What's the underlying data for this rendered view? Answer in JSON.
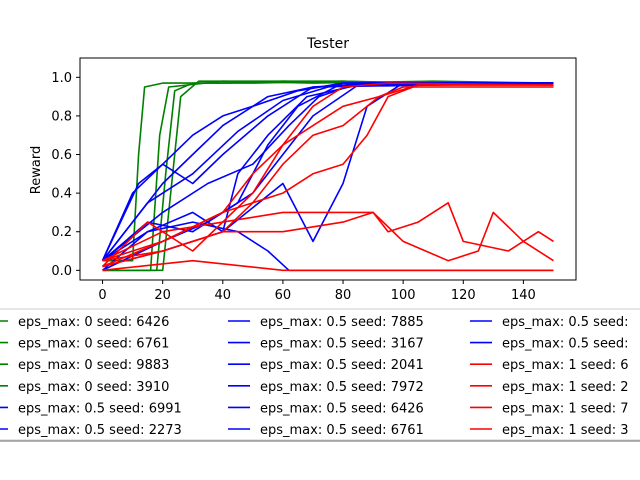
{
  "chart_data": {
    "type": "line",
    "title": "Tester",
    "xlabel": "",
    "ylabel": "Reward",
    "xlim": [
      -7.5,
      157.5
    ],
    "ylim": [
      -0.05,
      1.1
    ],
    "xticks": [
      0,
      20,
      40,
      60,
      80,
      100,
      120,
      140
    ],
    "yticks": [
      0.0,
      0.2,
      0.4,
      0.6,
      0.8,
      1.0
    ],
    "grid": false,
    "legend_position": "below plot, three columns, clipped at right edge",
    "colors": {
      "eps_0": "#008000",
      "eps_0.5": "#0000ff",
      "eps_1": "#ff0000"
    },
    "series": [
      {
        "name": "eps_max: 0 seed: 6426",
        "color": "#008000",
        "points": [
          [
            0,
            0.05
          ],
          [
            10,
            0.05
          ],
          [
            12,
            0.6
          ],
          [
            14,
            0.95
          ],
          [
            20,
            0.97
          ],
          [
            40,
            0.97
          ],
          [
            60,
            0.98
          ],
          [
            80,
            0.98
          ],
          [
            100,
            0.97
          ],
          [
            120,
            0.97
          ],
          [
            150,
            0.97
          ]
        ]
      },
      {
        "name": "eps_max: 0 seed: 6761",
        "color": "#008000",
        "points": [
          [
            0,
            0.0
          ],
          [
            18,
            0.0
          ],
          [
            21,
            0.5
          ],
          [
            24,
            0.93
          ],
          [
            30,
            0.97
          ],
          [
            50,
            0.97
          ],
          [
            80,
            0.98
          ],
          [
            110,
            0.97
          ],
          [
            150,
            0.97
          ]
        ]
      },
      {
        "name": "eps_max: 0 seed: 9883",
        "color": "#008000",
        "points": [
          [
            0,
            0.0
          ],
          [
            20,
            0.0
          ],
          [
            26,
            0.9
          ],
          [
            32,
            0.98
          ],
          [
            60,
            0.98
          ],
          [
            100,
            0.97
          ],
          [
            150,
            0.97
          ]
        ]
      },
      {
        "name": "eps_max: 0 seed: 3910",
        "color": "#008000",
        "points": [
          [
            0,
            0.0
          ],
          [
            16,
            0.0
          ],
          [
            19,
            0.7
          ],
          [
            22,
            0.95
          ],
          [
            40,
            0.98
          ],
          [
            70,
            0.97
          ],
          [
            110,
            0.98
          ],
          [
            150,
            0.97
          ]
        ]
      },
      {
        "name": "eps_max: 0.5 seed: 6991",
        "color": "#0000ff",
        "points": [
          [
            0,
            0.05
          ],
          [
            10,
            0.25
          ],
          [
            20,
            0.45
          ],
          [
            30,
            0.6
          ],
          [
            40,
            0.75
          ],
          [
            55,
            0.9
          ],
          [
            70,
            0.95
          ],
          [
            90,
            0.97
          ],
          [
            120,
            0.97
          ],
          [
            150,
            0.96
          ]
        ]
      },
      {
        "name": "eps_max: 0.5 seed: 2273",
        "color": "#0000ff",
        "points": [
          [
            0,
            0.05
          ],
          [
            10,
            0.4
          ],
          [
            20,
            0.55
          ],
          [
            30,
            0.7
          ],
          [
            40,
            0.8
          ],
          [
            50,
            0.85
          ],
          [
            65,
            0.93
          ],
          [
            80,
            0.97
          ],
          [
            120,
            0.97
          ],
          [
            150,
            0.97
          ]
        ]
      },
      {
        "name": "eps_max: 0.5 seed: 7885",
        "color": "#0000ff",
        "points": [
          [
            0,
            0.05
          ],
          [
            15,
            0.35
          ],
          [
            30,
            0.5
          ],
          [
            45,
            0.72
          ],
          [
            60,
            0.88
          ],
          [
            75,
            0.95
          ],
          [
            90,
            0.97
          ],
          [
            150,
            0.97
          ]
        ]
      },
      {
        "name": "eps_max: 0.5 seed: 3167",
        "color": "#0000ff",
        "points": [
          [
            0,
            0.05
          ],
          [
            15,
            0.25
          ],
          [
            30,
            0.2
          ],
          [
            45,
            0.35
          ],
          [
            55,
            0.65
          ],
          [
            65,
            0.85
          ],
          [
            80,
            0.97
          ],
          [
            150,
            0.97
          ]
        ]
      },
      {
        "name": "eps_max: 0.5 seed: 2041",
        "color": "#0000ff",
        "points": [
          [
            0,
            0.05
          ],
          [
            20,
            0.3
          ],
          [
            35,
            0.45
          ],
          [
            50,
            0.55
          ],
          [
            62,
            0.75
          ],
          [
            72,
            0.9
          ],
          [
            85,
            0.97
          ],
          [
            150,
            0.97
          ]
        ]
      },
      {
        "name": "eps_max: 0.5 seed: 7972",
        "color": "#0000ff",
        "points": [
          [
            0,
            0.05
          ],
          [
            15,
            0.2
          ],
          [
            30,
            0.25
          ],
          [
            45,
            0.2
          ],
          [
            55,
            0.1
          ],
          [
            62,
            0.0
          ],
          [
            100,
            0.0
          ],
          [
            150,
            0.0
          ]
        ]
      },
      {
        "name": "eps_max: 0.5 seed: 6426",
        "color": "#0000ff",
        "points": [
          [
            0,
            0.0
          ],
          [
            20,
            0.15
          ],
          [
            35,
            0.25
          ],
          [
            50,
            0.4
          ],
          [
            60,
            0.6
          ],
          [
            70,
            0.8
          ],
          [
            85,
            0.96
          ],
          [
            150,
            0.97
          ]
        ]
      },
      {
        "name": "eps_max: 0.5 seed: 6761",
        "color": "#0000ff",
        "points": [
          [
            0,
            0.0
          ],
          [
            15,
            0.2
          ],
          [
            30,
            0.3
          ],
          [
            40,
            0.2
          ],
          [
            45,
            0.5
          ],
          [
            55,
            0.7
          ],
          [
            68,
            0.9
          ],
          [
            85,
            0.96
          ],
          [
            150,
            0.97
          ]
        ]
      },
      {
        "name": "eps_max: 0.5 seed: ",
        "color": "#0000ff",
        "points": [
          [
            0,
            0.05
          ],
          [
            12,
            0.45
          ],
          [
            20,
            0.55
          ],
          [
            30,
            0.45
          ],
          [
            40,
            0.6
          ],
          [
            55,
            0.8
          ],
          [
            70,
            0.95
          ],
          [
            150,
            0.97
          ]
        ]
      },
      {
        "name": "eps_max: 0.5 seed: ",
        "color": "#0000ff",
        "points": [
          [
            0,
            0.02
          ],
          [
            20,
            0.1
          ],
          [
            40,
            0.2
          ],
          [
            60,
            0.45
          ],
          [
            70,
            0.15
          ],
          [
            80,
            0.45
          ],
          [
            88,
            0.85
          ],
          [
            100,
            0.97
          ],
          [
            150,
            0.97
          ]
        ]
      },
      {
        "name": "eps_max: 1 seed: 6",
        "color": "#ff0000",
        "points": [
          [
            0,
            0.05
          ],
          [
            20,
            0.15
          ],
          [
            40,
            0.3
          ],
          [
            50,
            0.5
          ],
          [
            60,
            0.65
          ],
          [
            70,
            0.75
          ],
          [
            80,
            0.85
          ],
          [
            92,
            0.9
          ],
          [
            100,
            0.95
          ],
          [
            150,
            0.95
          ]
        ]
      },
      {
        "name": "eps_max: 1 seed: 2",
        "color": "#ff0000",
        "points": [
          [
            0,
            0.05
          ],
          [
            20,
            0.1
          ],
          [
            40,
            0.2
          ],
          [
            50,
            0.35
          ],
          [
            60,
            0.55
          ],
          [
            70,
            0.7
          ],
          [
            80,
            0.75
          ],
          [
            92,
            0.9
          ],
          [
            105,
            0.96
          ],
          [
            150,
            0.96
          ]
        ]
      },
      {
        "name": "eps_max: 1 seed: 7",
        "color": "#ff0000",
        "points": [
          [
            0,
            0.05
          ],
          [
            20,
            0.2
          ],
          [
            40,
            0.25
          ],
          [
            60,
            0.3
          ],
          [
            80,
            0.3
          ],
          [
            90,
            0.3
          ],
          [
            100,
            0.15
          ],
          [
            115,
            0.05
          ],
          [
            125,
            0.1
          ],
          [
            130,
            0.3
          ],
          [
            140,
            0.15
          ],
          [
            150,
            0.05
          ]
        ]
      },
      {
        "name": "eps_max: 1 seed: 3",
        "color": "#ff0000",
        "points": [
          [
            0,
            0.02
          ],
          [
            20,
            0.1
          ],
          [
            40,
            0.2
          ],
          [
            60,
            0.2
          ],
          [
            80,
            0.25
          ],
          [
            90,
            0.3
          ],
          [
            95,
            0.2
          ],
          [
            105,
            0.25
          ],
          [
            115,
            0.35
          ],
          [
            120,
            0.15
          ],
          [
            135,
            0.1
          ],
          [
            145,
            0.2
          ],
          [
            150,
            0.15
          ]
        ]
      },
      {
        "name": "",
        "color": "#ff0000",
        "points": [
          [
            0,
            0.02
          ],
          [
            20,
            0.15
          ],
          [
            40,
            0.3
          ],
          [
            60,
            0.4
          ],
          [
            70,
            0.5
          ],
          [
            80,
            0.55
          ],
          [
            88,
            0.7
          ],
          [
            95,
            0.9
          ],
          [
            105,
            0.96
          ],
          [
            150,
            0.96
          ]
        ]
      },
      {
        "name": "",
        "color": "#ff0000",
        "points": [
          [
            0,
            0.02
          ],
          [
            15,
            0.25
          ],
          [
            30,
            0.1
          ],
          [
            50,
            0.4
          ],
          [
            60,
            0.65
          ],
          [
            70,
            0.85
          ],
          [
            80,
            0.95
          ],
          [
            95,
            0.97
          ],
          [
            150,
            0.96
          ]
        ]
      },
      {
        "name": "",
        "color": "#ff0000",
        "points": [
          [
            0,
            0.0
          ],
          [
            30,
            0.05
          ],
          [
            60,
            0.0
          ],
          [
            150,
            0.0
          ]
        ]
      }
    ],
    "legend": [
      {
        "label": "eps_max: 0 seed: 6426",
        "color": "#008000"
      },
      {
        "label": "eps_max: 0 seed: 6761",
        "color": "#008000"
      },
      {
        "label": "eps_max: 0 seed: 9883",
        "color": "#008000"
      },
      {
        "label": "eps_max: 0 seed: 3910",
        "color": "#008000"
      },
      {
        "label": "eps_max: 0.5 seed: 6991",
        "color": "#0000ff"
      },
      {
        "label": "eps_max: 0.5 seed: 2273",
        "color": "#0000ff"
      },
      {
        "label": "eps_max: 0.5 seed: 7885",
        "color": "#0000ff"
      },
      {
        "label": "eps_max: 0.5 seed: 3167",
        "color": "#0000ff"
      },
      {
        "label": "eps_max: 0.5 seed: 2041",
        "color": "#0000ff"
      },
      {
        "label": "eps_max: 0.5 seed: 7972",
        "color": "#0000ff"
      },
      {
        "label": "eps_max: 0.5 seed: 6426",
        "color": "#0000ff"
      },
      {
        "label": "eps_max: 0.5 seed: 6761",
        "color": "#0000ff"
      },
      {
        "label": "eps_max: 0.5 seed: ",
        "color": "#0000ff"
      },
      {
        "label": "eps_max: 0.5 seed: ",
        "color": "#0000ff"
      },
      {
        "label": "eps_max: 1 seed: 6",
        "color": "#ff0000"
      },
      {
        "label": "eps_max: 1 seed: 2",
        "color": "#ff0000"
      },
      {
        "label": "eps_max: 1 seed: 7",
        "color": "#ff0000"
      },
      {
        "label": "eps_max: 1 seed: 3",
        "color": "#ff0000"
      }
    ]
  }
}
